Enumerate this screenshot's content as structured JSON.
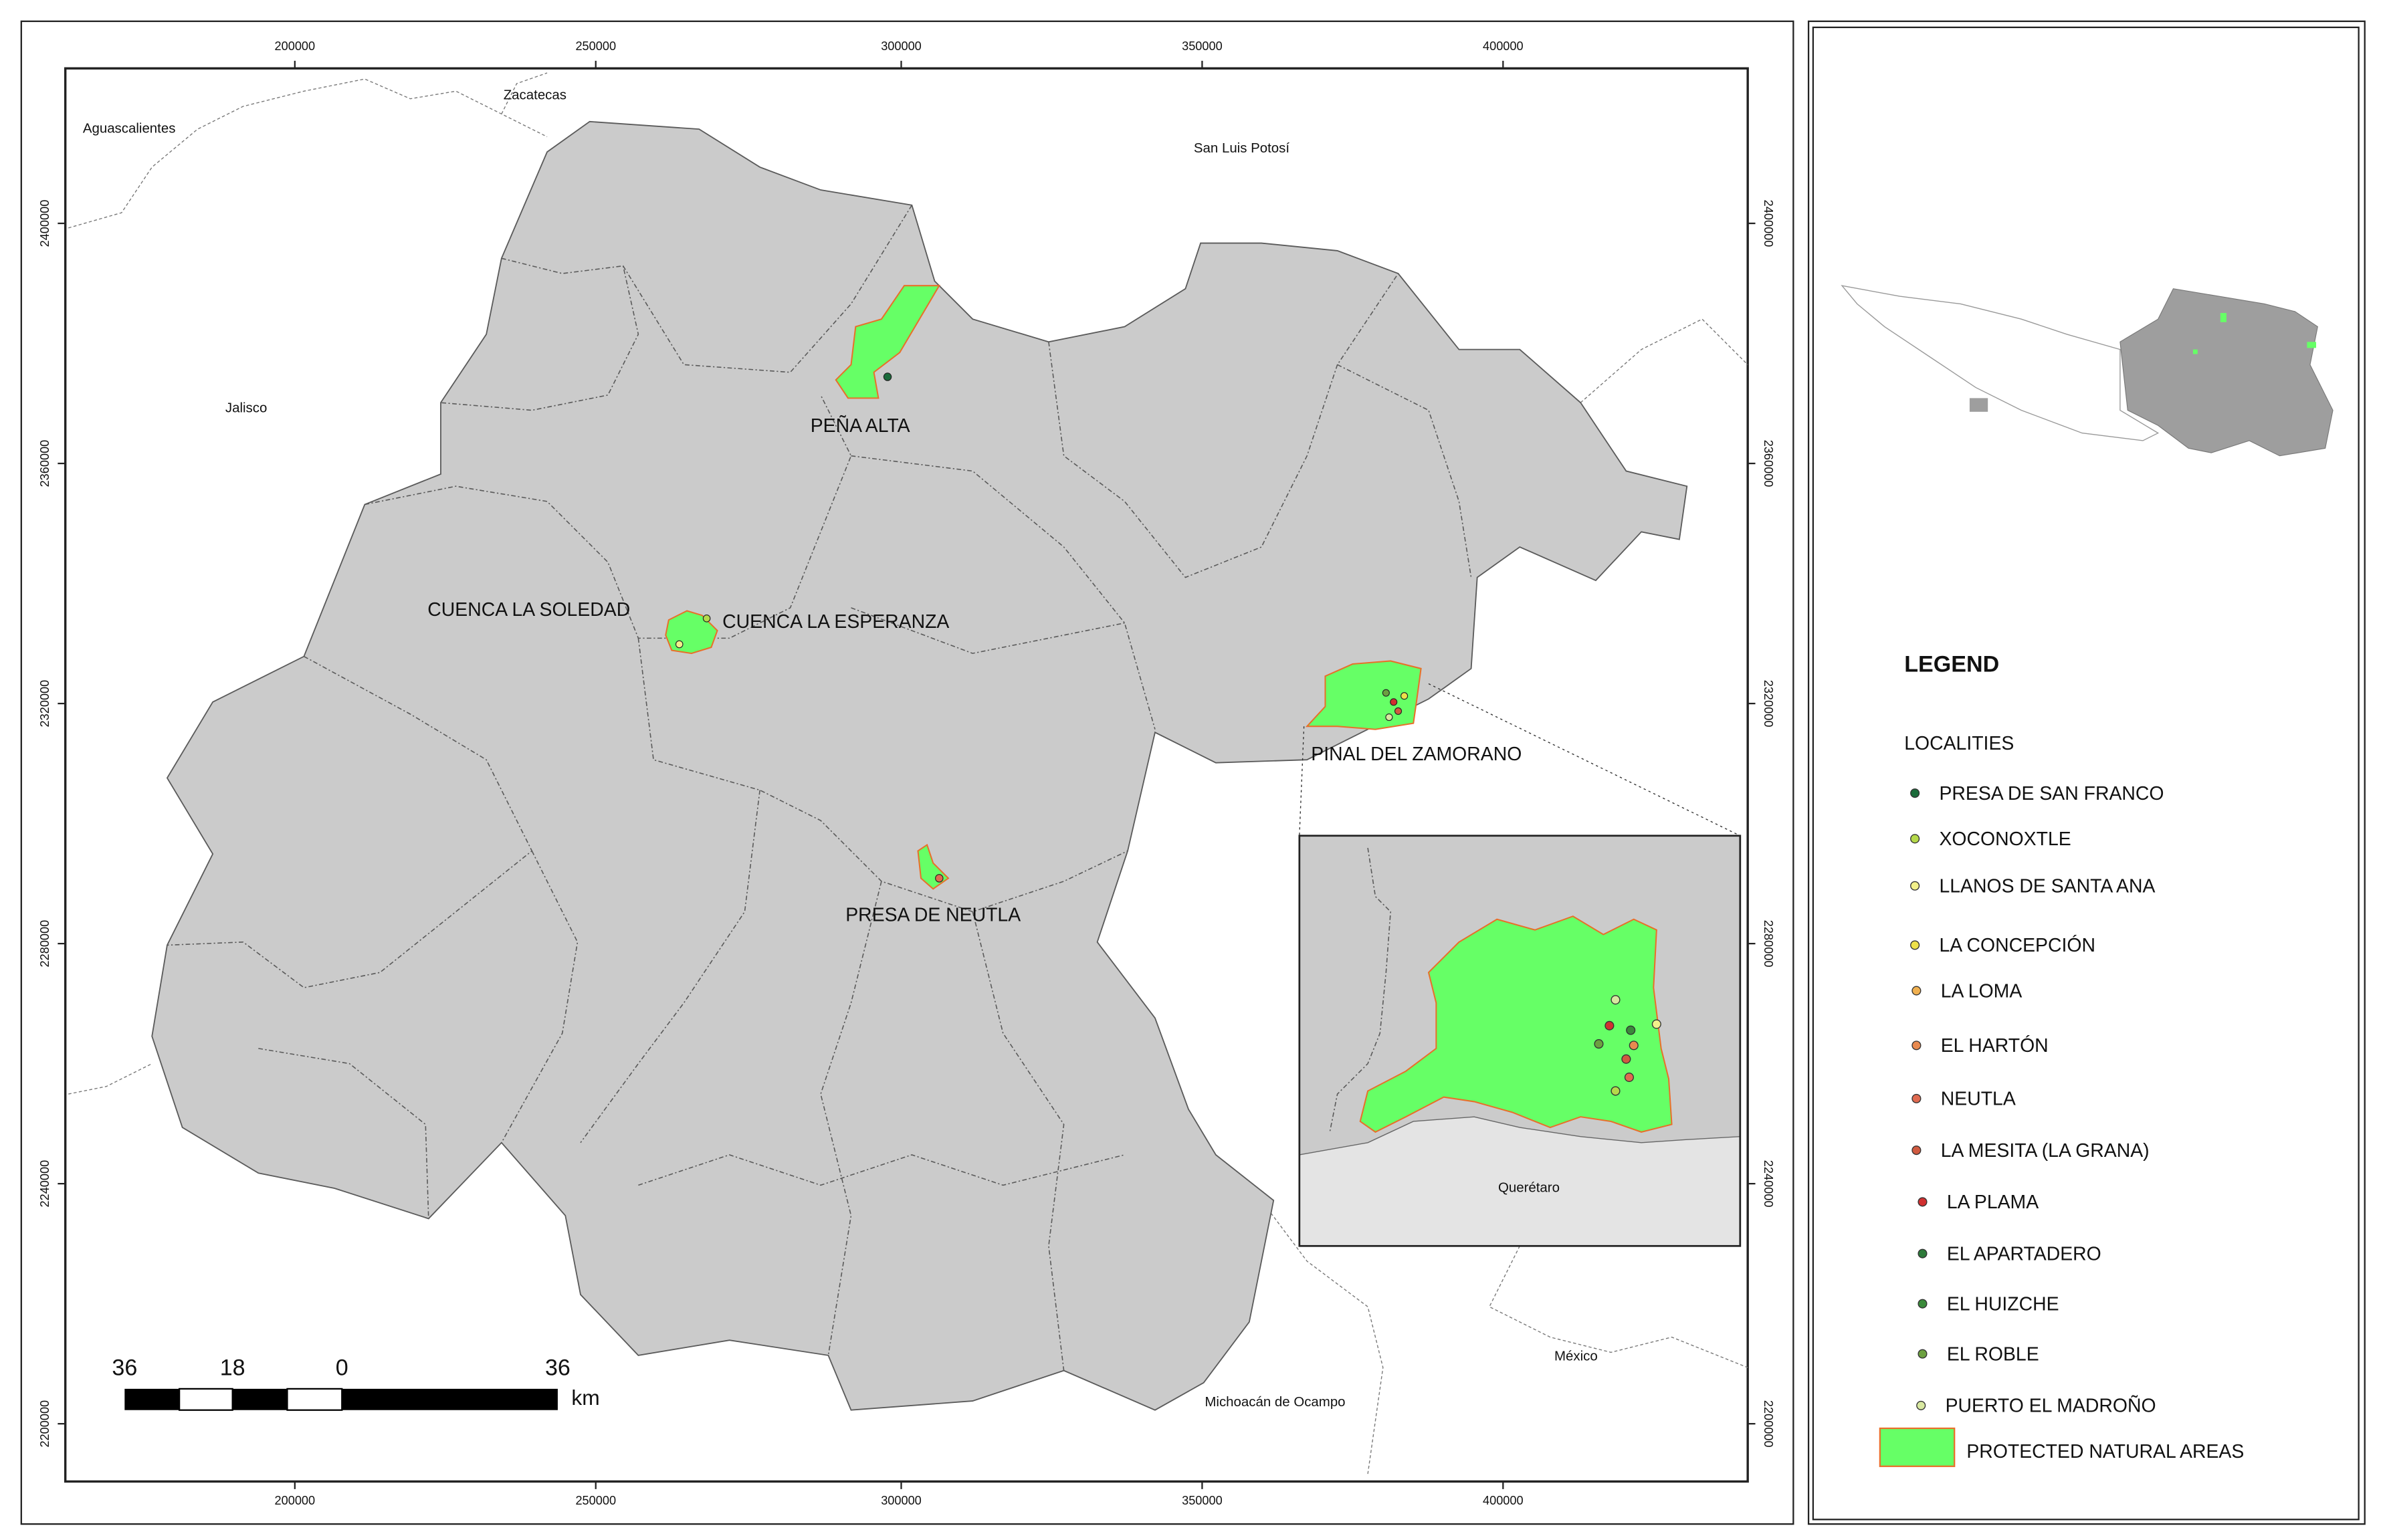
{
  "map": {
    "x_ticks": [
      "200000",
      "250000",
      "300000",
      "350000",
      "400000"
    ],
    "y_ticks": [
      "2400000",
      "2360000",
      "2320000",
      "2280000",
      "2240000",
      "2200000"
    ],
    "region_labels": [
      "Aguascalientes",
      "Zacatecas",
      "San Luis Potosí",
      "Jalisco",
      "Querétaro",
      "México",
      "Michoacán de Ocampo"
    ],
    "protected_areas": [
      "PEÑA ALTA",
      "CUENCA LA SOLEDAD",
      "CUENCA LA ESPERANZA",
      "PINAL DEL ZAMORANO",
      "PRESA DE NEUTLA"
    ],
    "scale_bar": {
      "labels": [
        "36",
        "18",
        "0",
        "36"
      ],
      "unit": "km"
    }
  },
  "legend": {
    "title": "LEGEND",
    "subtitle": "LOCALITIES",
    "items": [
      "PRESA DE SAN FRANCO",
      "XOCONOXTLE",
      "LLANOS DE SANTA ANA",
      "LA CONCEPCIÓN",
      "LA LOMA",
      "EL HARTÓN",
      "NEUTLA",
      "LA MESITA (LA GRANA)",
      "LA PLAMA",
      "EL APARTADERO",
      "EL HUIZCHE",
      "EL ROBLE",
      "PUERTO EL MADROÑO"
    ],
    "area_label": "PROTECTED NATURAL AREAS"
  }
}
